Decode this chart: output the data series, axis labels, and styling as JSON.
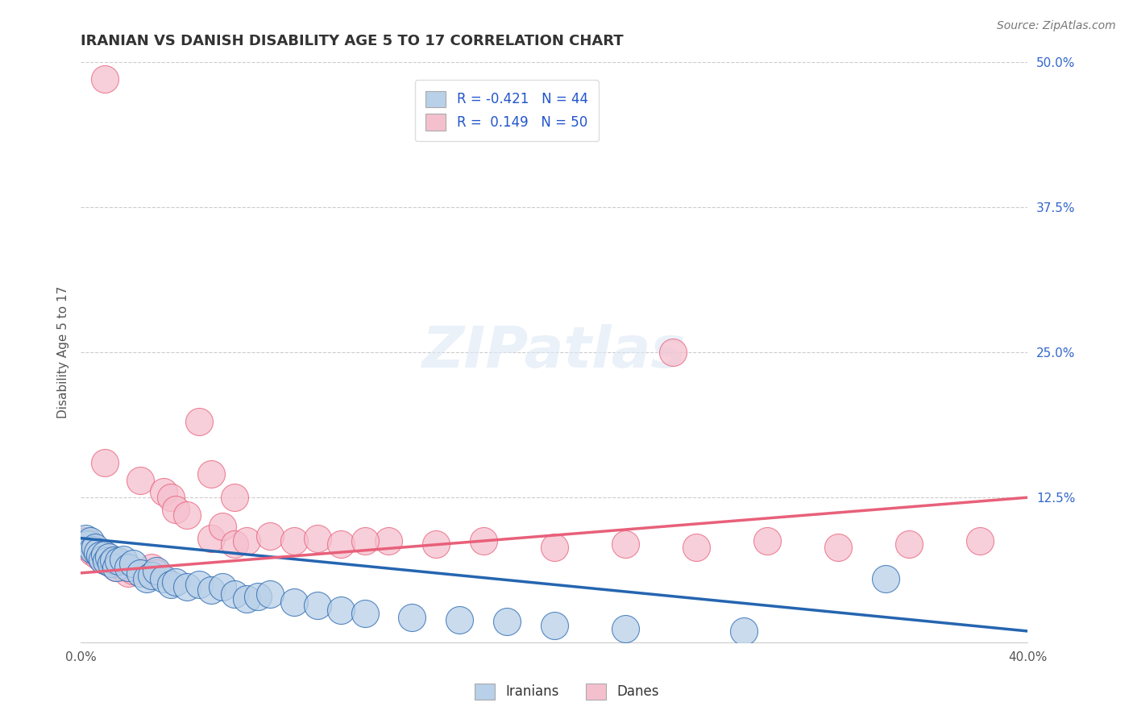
{
  "title": "IRANIAN VS DANISH DISABILITY AGE 5 TO 17 CORRELATION CHART",
  "source_text": "Source: ZipAtlas.com",
  "ylabel": "Disability Age 5 to 17",
  "xlim": [
    0.0,
    0.4
  ],
  "ylim": [
    0.0,
    0.5
  ],
  "xticks": [
    0.0,
    0.1,
    0.2,
    0.3,
    0.4
  ],
  "xticklabels": [
    "0.0%",
    "",
    "",
    "",
    "40.0%"
  ],
  "yticks": [
    0.0,
    0.125,
    0.25,
    0.375,
    0.5
  ],
  "yticklabels": [
    "",
    "12.5%",
    "25.0%",
    "37.5%",
    "50.0%"
  ],
  "background_color": "#ffffff",
  "grid_color": "#cccccc",
  "iranian_color": "#b8d0e8",
  "danish_color": "#f5c0ce",
  "iranian_line_color": "#2565b0",
  "danish_line_color": "#e8607a",
  "iranian_R": -0.421,
  "danish_R": 0.149,
  "iranian_N": 44,
  "danish_N": 50,
  "watermark_text": "ZIPatlas",
  "iranians_x": [
    0.002,
    0.003,
    0.004,
    0.005,
    0.006,
    0.007,
    0.008,
    0.009,
    0.01,
    0.011,
    0.012,
    0.013,
    0.014,
    0.015,
    0.016,
    0.018,
    0.02,
    0.022,
    0.025,
    0.028,
    0.03,
    0.032,
    0.035,
    0.038,
    0.04,
    0.045,
    0.05,
    0.055,
    0.06,
    0.065,
    0.07,
    0.075,
    0.08,
    0.09,
    0.1,
    0.11,
    0.12,
    0.14,
    0.16,
    0.18,
    0.2,
    0.23,
    0.28,
    0.34
  ],
  "iranians_y": [
    0.09,
    0.085,
    0.088,
    0.08,
    0.082,
    0.078,
    0.075,
    0.072,
    0.076,
    0.07,
    0.074,
    0.068,
    0.071,
    0.065,
    0.07,
    0.072,
    0.065,
    0.068,
    0.06,
    0.055,
    0.058,
    0.062,
    0.055,
    0.05,
    0.052,
    0.048,
    0.05,
    0.045,
    0.048,
    0.042,
    0.038,
    0.04,
    0.042,
    0.035,
    0.032,
    0.028,
    0.025,
    0.022,
    0.02,
    0.018,
    0.015,
    0.012,
    0.01,
    0.055
  ],
  "danes_x": [
    0.002,
    0.003,
    0.004,
    0.005,
    0.006,
    0.007,
    0.008,
    0.009,
    0.01,
    0.011,
    0.012,
    0.013,
    0.014,
    0.015,
    0.016,
    0.018,
    0.02,
    0.022,
    0.025,
    0.028,
    0.03,
    0.032,
    0.035,
    0.038,
    0.04,
    0.045,
    0.05,
    0.055,
    0.06,
    0.065,
    0.07,
    0.08,
    0.09,
    0.1,
    0.11,
    0.13,
    0.15,
    0.17,
    0.2,
    0.23,
    0.26,
    0.29,
    0.32,
    0.35,
    0.38,
    0.055,
    0.065,
    0.12,
    0.25,
    0.01
  ],
  "danes_y": [
    0.088,
    0.082,
    0.085,
    0.078,
    0.08,
    0.075,
    0.078,
    0.072,
    0.485,
    0.07,
    0.072,
    0.068,
    0.07,
    0.065,
    0.068,
    0.065,
    0.06,
    0.062,
    0.14,
    0.06,
    0.065,
    0.06,
    0.13,
    0.125,
    0.115,
    0.11,
    0.19,
    0.09,
    0.1,
    0.085,
    0.088,
    0.092,
    0.088,
    0.09,
    0.085,
    0.088,
    0.085,
    0.088,
    0.082,
    0.085,
    0.082,
    0.088,
    0.082,
    0.085,
    0.088,
    0.145,
    0.125,
    0.088,
    0.25,
    0.155
  ]
}
